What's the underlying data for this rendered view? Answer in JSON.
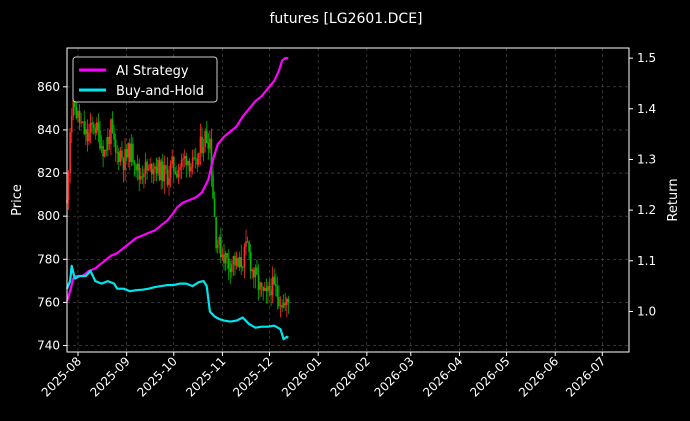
{
  "chart_data": {
    "type": "candlestick+line",
    "title": "futures [LG2601.DCE]",
    "ylabel_left": "Price",
    "ylabel_right": "Return",
    "x_start": "2025-07-25",
    "xlim": [
      "2025-07-25",
      "2026-07-18"
    ],
    "ylim_left": [
      737,
      878
    ],
    "ylim_right": [
      0.92,
      1.52
    ],
    "x_ticks": [
      "2025-08",
      "2025-09",
      "2025-10",
      "2025-11",
      "2025-12",
      "2026-01",
      "2026-02",
      "2026-03",
      "2026-04",
      "2026-05",
      "2026-06",
      "2026-07"
    ],
    "x_tick_dates": [
      "2025-08-01",
      "2025-09-01",
      "2025-10-01",
      "2025-11-01",
      "2025-12-01",
      "2026-01-01",
      "2026-02-01",
      "2026-03-01",
      "2026-04-01",
      "2026-05-01",
      "2026-06-01",
      "2026-07-01"
    ],
    "y_ticks_left": [
      740,
      760,
      780,
      800,
      820,
      840,
      860
    ],
    "y_ticks_right": [
      1.0,
      1.1,
      1.2,
      1.3,
      1.4,
      1.5
    ],
    "grid": true,
    "legend_position": "top-left",
    "colors": {
      "ai": "#ff00ff",
      "bh": "#00e5ee",
      "up": "#ff2a2a",
      "down": "#00bb00",
      "background": "#000000",
      "grid": "#555555"
    },
    "legend": [
      "AI Strategy",
      "Buy-and-Hold"
    ],
    "price_path": [
      [
        0,
        806
      ],
      [
        2,
        842
      ],
      [
        4,
        854
      ],
      [
        6,
        848
      ],
      [
        9,
        842
      ],
      [
        13,
        836
      ],
      [
        17,
        843
      ],
      [
        20,
        838
      ],
      [
        24,
        830
      ],
      [
        28,
        840
      ],
      [
        31,
        828
      ],
      [
        34,
        830
      ],
      [
        36,
        826
      ],
      [
        40,
        830
      ],
      [
        43,
        828
      ],
      [
        46,
        818
      ],
      [
        49,
        823
      ],
      [
        52,
        820
      ],
      [
        55,
        825
      ],
      [
        58,
        822
      ],
      [
        61,
        820
      ],
      [
        64,
        819
      ],
      [
        67,
        823
      ],
      [
        70,
        822
      ],
      [
        73,
        824
      ],
      [
        76,
        828
      ],
      [
        79,
        824
      ],
      [
        82,
        822
      ],
      [
        85,
        832
      ],
      [
        88,
        837
      ],
      [
        91,
        836
      ],
      [
        93,
        810
      ],
      [
        95,
        790
      ],
      [
        97,
        786
      ],
      [
        100,
        782
      ],
      [
        103,
        778
      ],
      [
        106,
        780
      ],
      [
        109,
        776
      ],
      [
        112,
        780
      ],
      [
        115,
        786
      ],
      [
        118,
        775
      ],
      [
        121,
        770
      ],
      [
        124,
        764
      ],
      [
        127,
        762
      ],
      [
        130,
        768
      ],
      [
        133,
        765
      ],
      [
        136,
        762
      ],
      [
        139,
        758
      ],
      [
        141,
        760
      ]
    ],
    "series": [
      {
        "name": "AI Strategy",
        "points": [
          [
            0,
            1.02
          ],
          [
            2,
            1.04
          ],
          [
            4,
            1.065
          ],
          [
            6,
            1.07
          ],
          [
            10,
            1.07
          ],
          [
            14,
            1.08
          ],
          [
            18,
            1.085
          ],
          [
            20,
            1.09
          ],
          [
            24,
            1.1
          ],
          [
            28,
            1.11
          ],
          [
            32,
            1.115
          ],
          [
            36,
            1.125
          ],
          [
            40,
            1.135
          ],
          [
            44,
            1.145
          ],
          [
            48,
            1.15
          ],
          [
            52,
            1.155
          ],
          [
            56,
            1.16
          ],
          [
            60,
            1.17
          ],
          [
            64,
            1.18
          ],
          [
            68,
            1.195
          ],
          [
            70,
            1.205
          ],
          [
            74,
            1.215
          ],
          [
            78,
            1.22
          ],
          [
            82,
            1.225
          ],
          [
            86,
            1.235
          ],
          [
            90,
            1.26
          ],
          [
            93,
            1.3
          ],
          [
            96,
            1.33
          ],
          [
            100,
            1.345
          ],
          [
            104,
            1.355
          ],
          [
            108,
            1.365
          ],
          [
            112,
            1.385
          ],
          [
            116,
            1.4
          ],
          [
            120,
            1.415
          ],
          [
            124,
            1.425
          ],
          [
            128,
            1.44
          ],
          [
            132,
            1.455
          ],
          [
            135,
            1.475
          ],
          [
            137,
            1.495
          ],
          [
            139,
            1.5
          ],
          [
            141,
            1.5
          ]
        ]
      },
      {
        "name": "Buy-and-Hold",
        "points": [
          [
            0,
            1.045
          ],
          [
            2,
            1.06
          ],
          [
            3,
            1.09
          ],
          [
            5,
            1.065
          ],
          [
            8,
            1.07
          ],
          [
            12,
            1.07
          ],
          [
            15,
            1.08
          ],
          [
            18,
            1.06
          ],
          [
            22,
            1.055
          ],
          [
            26,
            1.06
          ],
          [
            30,
            1.055
          ],
          [
            32,
            1.045
          ],
          [
            36,
            1.045
          ],
          [
            40,
            1.04
          ],
          [
            44,
            1.042
          ],
          [
            48,
            1.043
          ],
          [
            52,
            1.045
          ],
          [
            56,
            1.048
          ],
          [
            60,
            1.05
          ],
          [
            64,
            1.052
          ],
          [
            68,
            1.052
          ],
          [
            72,
            1.055
          ],
          [
            76,
            1.055
          ],
          [
            80,
            1.05
          ],
          [
            84,
            1.058
          ],
          [
            87,
            1.06
          ],
          [
            89,
            1.05
          ],
          [
            91,
            1.0
          ],
          [
            94,
            0.99
          ],
          [
            97,
            0.985
          ],
          [
            100,
            0.982
          ],
          [
            104,
            0.98
          ],
          [
            108,
            0.982
          ],
          [
            112,
            0.988
          ],
          [
            116,
            0.975
          ],
          [
            120,
            0.968
          ],
          [
            124,
            0.97
          ],
          [
            128,
            0.97
          ],
          [
            132,
            0.972
          ],
          [
            136,
            0.965
          ],
          [
            138,
            0.945
          ],
          [
            140,
            0.95
          ],
          [
            141,
            0.948
          ]
        ]
      }
    ]
  }
}
